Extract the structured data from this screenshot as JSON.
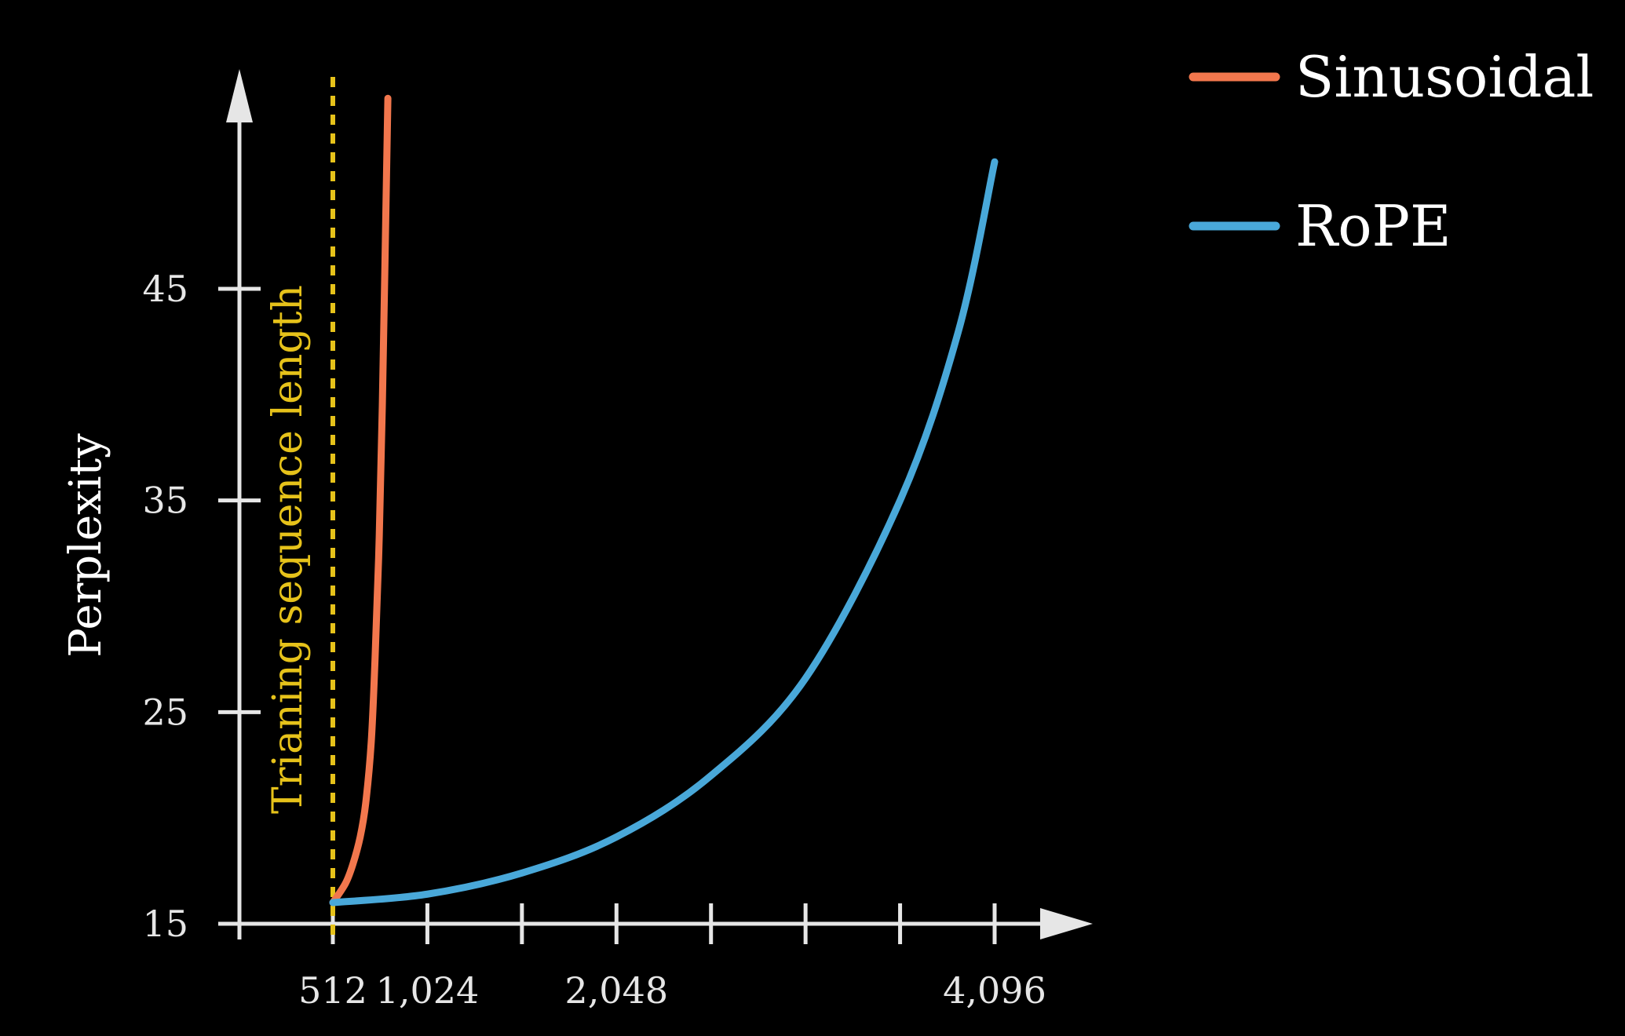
{
  "chart_data": {
    "type": "line",
    "title": "",
    "xlabel": "",
    "ylabel": "Perplexity",
    "xlim": [
      250,
      5100
    ],
    "ylim": [
      15,
      52
    ],
    "x_ticks": [
      512,
      1024,
      1536,
      2048,
      2560,
      3072,
      3584,
      4096
    ],
    "x_tick_labels": [
      "512",
      "1,024",
      "",
      "2,048",
      "",
      "",
      "",
      "4,096"
    ],
    "y_ticks": [
      15,
      25,
      35,
      45
    ],
    "y_tick_labels": [
      "15",
      "25",
      "35",
      "45"
    ],
    "grid": false,
    "legend": "top-right",
    "annotation": {
      "text": "Trianing sequence length",
      "x": 512,
      "color": "#e6c21a"
    },
    "series": [
      {
        "name": "Sinusoidal",
        "color": "#f2774d",
        "x": [
          512,
          580,
          620,
          660,
          690,
          720,
          740,
          760,
          780,
          810
        ],
        "y": [
          16,
          16.9,
          17.8,
          19.1,
          20.7,
          23.6,
          27.4,
          32.3,
          39.5,
          54
        ]
      },
      {
        "name": "RoPE",
        "color": "#49a8d9",
        "x": [
          512,
          1024,
          1536,
          2048,
          2560,
          3072,
          3584,
          3900,
          4096
        ],
        "y": [
          16,
          16.4,
          17.4,
          19.1,
          22,
          26.6,
          35,
          43,
          51
        ]
      }
    ]
  }
}
